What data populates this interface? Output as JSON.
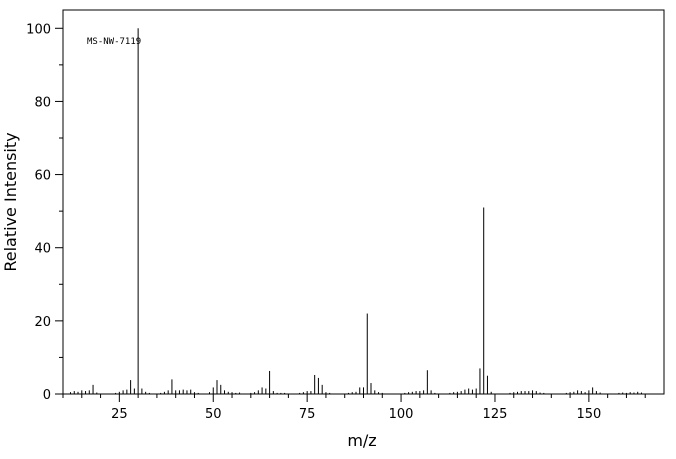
{
  "chart_data": {
    "type": "stem",
    "annotation": "MS-NW-7119",
    "xlabel": "m/z",
    "ylabel": "Relative Intensity",
    "color": "#000000",
    "x": [
      12,
      13,
      14,
      15,
      16,
      17,
      18,
      19,
      24,
      25,
      26,
      27,
      28,
      29,
      30,
      31,
      32,
      33,
      36,
      37,
      38,
      39,
      40,
      41,
      42,
      43,
      44,
      45,
      46,
      49,
      50,
      51,
      52,
      53,
      54,
      55,
      56,
      57,
      60,
      61,
      62,
      63,
      64,
      65,
      66,
      67,
      68,
      69,
      73,
      74,
      75,
      76,
      77,
      78,
      79,
      80,
      81,
      86,
      87,
      88,
      89,
      90,
      91,
      92,
      93,
      94,
      95,
      101,
      102,
      103,
      104,
      105,
      106,
      107,
      108,
      109,
      113,
      114,
      115,
      116,
      117,
      118,
      119,
      120,
      121,
      122,
      123,
      124,
      129,
      130,
      131,
      132,
      133,
      134,
      135,
      136,
      137,
      138,
      144,
      145,
      146,
      147,
      148,
      149,
      150,
      151,
      152,
      153,
      158,
      159,
      160,
      161,
      162,
      163,
      164
    ],
    "values": [
      0.5,
      0.8,
      0.6,
      1,
      0.8,
      1,
      2.5,
      0.4,
      0.3,
      0.6,
      1,
      1.2,
      3.8,
      1.5,
      100,
      1.5,
      0.6,
      0.3,
      0.3,
      0.6,
      1,
      4,
      1,
      1,
      1.2,
      1,
      1.2,
      0.5,
      0.3,
      0.5,
      1.8,
      3.8,
      2.5,
      1,
      0.6,
      0.5,
      0.3,
      0.4,
      0.3,
      0.5,
      1,
      1.8,
      1.5,
      6.3,
      0.8,
      0.3,
      0.3,
      0.3,
      0.3,
      0.5,
      0.8,
      0.8,
      5.2,
      4.4,
      2.5,
      0.5,
      0.3,
      0.3,
      0.5,
      0.6,
      1.8,
      1.8,
      22,
      3,
      1,
      0.5,
      0.3,
      0.3,
      0.5,
      0.6,
      0.8,
      0.8,
      1,
      6.5,
      1,
      0.3,
      0.3,
      0.5,
      0.6,
      0.8,
      1.2,
      1.5,
      1.2,
      1.5,
      7,
      51,
      5,
      0.6,
      0.3,
      0.5,
      0.6,
      0.8,
      0.8,
      0.8,
      1,
      0.8,
      0.4,
      0.3,
      0.3,
      0.5,
      0.6,
      1,
      0.8,
      0.5,
      1,
      1.8,
      0.8,
      0.4,
      0.3,
      0.4,
      0.3,
      0.5,
      0.4,
      0.6,
      0.4
    ],
    "xlim": [
      10,
      170
    ],
    "ylim": [
      0,
      105
    ],
    "xticks": [
      25,
      50,
      75,
      100,
      125,
      150
    ],
    "xminorticks": [
      10,
      15,
      20,
      30,
      35,
      40,
      45,
      55,
      60,
      65,
      70,
      80,
      85,
      90,
      95,
      105,
      110,
      115,
      120,
      130,
      135,
      140,
      145,
      155,
      160,
      165
    ],
    "yticks": [
      0,
      20,
      40,
      60,
      80,
      100
    ],
    "yminorticks": [
      10,
      30,
      50,
      70,
      90
    ]
  }
}
